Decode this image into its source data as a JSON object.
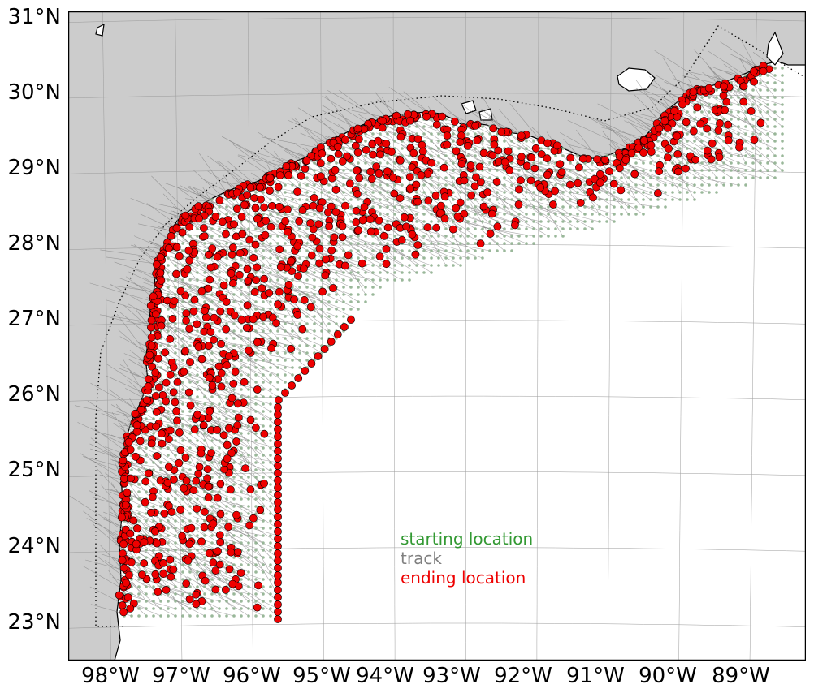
{
  "map": {
    "land_color": "#cccccc",
    "ocean_color": "#ffffff",
    "coast_color": "#000000",
    "grid_color": "#9a9a9a"
  },
  "chart_data": {
    "type": "scatter",
    "projection": "lambert-conformal",
    "lat_range": [
      22.5,
      31.1
    ],
    "lon_range": [
      -98.4,
      -87.9
    ],
    "lat_ticks": [
      {
        "value": 31,
        "label": "31°N"
      },
      {
        "value": 30,
        "label": "30°N"
      },
      {
        "value": 29,
        "label": "29°N"
      },
      {
        "value": 28,
        "label": "28°N"
      },
      {
        "value": 27,
        "label": "27°N"
      },
      {
        "value": 26,
        "label": "26°N"
      },
      {
        "value": 25,
        "label": "25°N"
      },
      {
        "value": 24,
        "label": "24°N"
      },
      {
        "value": 23,
        "label": "23°N"
      }
    ],
    "lon_ticks": [
      {
        "value": -98,
        "label": "98°W"
      },
      {
        "value": -97,
        "label": "97°W"
      },
      {
        "value": -96,
        "label": "96°W"
      },
      {
        "value": -95,
        "label": "95°W"
      },
      {
        "value": -94,
        "label": "94°W"
      },
      {
        "value": -93,
        "label": "93°W"
      },
      {
        "value": -92,
        "label": "92°W"
      },
      {
        "value": -91,
        "label": "91°W"
      },
      {
        "value": -90,
        "label": "90°W"
      },
      {
        "value": -89,
        "label": "89°W"
      }
    ],
    "grid": true,
    "legend": {
      "placement": "lower-center",
      "entries": [
        {
          "label": "starting location",
          "color": "#339933"
        },
        {
          "label": "track",
          "color": "#808080"
        },
        {
          "label": "ending location",
          "color": "#ee0000"
        }
      ]
    },
    "series": [
      {
        "name": "starting location",
        "marker": "small-dot",
        "color": "#8fb08f",
        "extent": {
          "lon": [
            -97.9,
            -88.2
          ],
          "lat": [
            22.9,
            30.4
          ]
        }
      },
      {
        "name": "track",
        "marker": "line",
        "color": "#808080"
      },
      {
        "name": "ending location",
        "marker": "circle",
        "color": "#ee0000",
        "edge": "#000000",
        "extent": {
          "lon": [
            -97.8,
            -88.2
          ],
          "lat": [
            23.0,
            30.4
          ]
        }
      }
    ]
  }
}
